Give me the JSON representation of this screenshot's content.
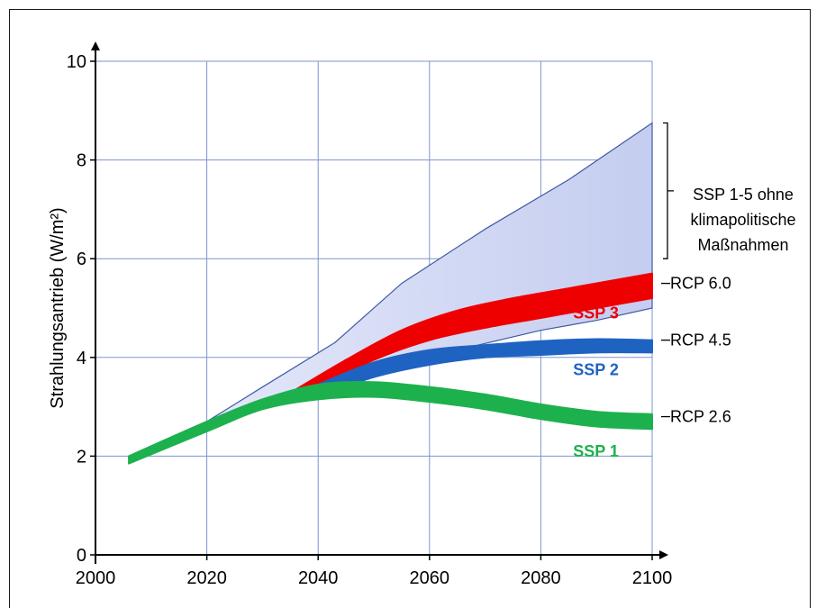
{
  "chart_data": {
    "type": "area",
    "xlim": [
      2000,
      2100
    ],
    "ylim": [
      0,
      10
    ],
    "x_ticks": [
      "2000",
      "2020",
      "2040",
      "2060",
      "2080",
      "2100"
    ],
    "y_ticks": [
      "0",
      "2",
      "4",
      "6",
      "8",
      "10"
    ],
    "ylabel": "Strahlungsantrieb (W/m²)",
    "grid": true,
    "envelope": {
      "color": "#c5cdf0",
      "upper": [
        [
          2006,
          1.95
        ],
        [
          2020,
          2.7
        ],
        [
          2030,
          3.4
        ],
        [
          2043,
          4.3
        ],
        [
          2055,
          5.5
        ],
        [
          2070,
          6.6
        ],
        [
          2085,
          7.6
        ],
        [
          2100,
          8.75
        ]
      ],
      "lower": [
        [
          2100,
          5.0
        ],
        [
          2090,
          4.75
        ],
        [
          2080,
          4.55
        ],
        [
          2065,
          4.15
        ],
        [
          2050,
          3.7
        ],
        [
          2040,
          3.3
        ],
        [
          2030,
          2.95
        ],
        [
          2020,
          2.55
        ],
        [
          2006,
          1.95
        ]
      ]
    },
    "series": [
      {
        "name": "SSP 3",
        "color": "#ee0000",
        "upper": [
          [
            2036,
            3.35
          ],
          [
            2045,
            3.95
          ],
          [
            2055,
            4.55
          ],
          [
            2065,
            4.95
          ],
          [
            2075,
            5.2
          ],
          [
            2085,
            5.4
          ],
          [
            2100,
            5.7
          ]
        ],
        "lower": [
          [
            2100,
            5.2
          ],
          [
            2090,
            5.0
          ],
          [
            2080,
            4.8
          ],
          [
            2070,
            4.6
          ],
          [
            2060,
            4.35
          ],
          [
            2050,
            3.95
          ],
          [
            2040,
            3.4
          ],
          [
            2036,
            3.3
          ]
        ]
      },
      {
        "name": "SSP 2",
        "color": "#1f63c2",
        "upper": [
          [
            2040,
            3.45
          ],
          [
            2050,
            3.9
          ],
          [
            2060,
            4.15
          ],
          [
            2070,
            4.25
          ],
          [
            2080,
            4.33
          ],
          [
            2090,
            4.37
          ],
          [
            2100,
            4.35
          ]
        ],
        "lower": [
          [
            2100,
            4.1
          ],
          [
            2090,
            4.1
          ],
          [
            2080,
            4.05
          ],
          [
            2070,
            4.0
          ],
          [
            2060,
            3.85
          ],
          [
            2050,
            3.6
          ],
          [
            2040,
            3.2
          ]
        ]
      },
      {
        "name": "SSP 1",
        "color": "#1db14e",
        "upper": [
          [
            2006,
            2.0
          ],
          [
            2020,
            2.7
          ],
          [
            2030,
            3.15
          ],
          [
            2040,
            3.45
          ],
          [
            2050,
            3.5
          ],
          [
            2060,
            3.4
          ],
          [
            2070,
            3.25
          ],
          [
            2080,
            3.05
          ],
          [
            2090,
            2.9
          ],
          [
            2100,
            2.85
          ]
        ],
        "lower": [
          [
            2100,
            2.55
          ],
          [
            2090,
            2.6
          ],
          [
            2080,
            2.75
          ],
          [
            2070,
            2.95
          ],
          [
            2060,
            3.1
          ],
          [
            2050,
            3.2
          ],
          [
            2040,
            3.15
          ],
          [
            2030,
            2.95
          ],
          [
            2020,
            2.5
          ],
          [
            2006,
            1.85
          ]
        ]
      }
    ],
    "annotations": {
      "ssp_bracket_lines": [
        "SSP 1-5 ohne",
        "klimapolitische",
        "Maßnahmen"
      ],
      "rcp": [
        {
          "label": "RCP 6.0",
          "y": 5.5
        },
        {
          "label": "RCP 4.5",
          "y": 4.35
        },
        {
          "label": "RCP 2.6",
          "y": 2.8
        }
      ],
      "ssp_labels": [
        {
          "label": "SSP 3",
          "color": "#ee0000",
          "x": 2094,
          "y": 4.9
        },
        {
          "label": "SSP 2",
          "color": "#1f63c2",
          "x": 2094,
          "y": 3.75
        },
        {
          "label": "SSP 1",
          "color": "#1db14e",
          "x": 2094,
          "y": 2.1
        }
      ],
      "bracket_range": [
        6.0,
        8.75
      ]
    }
  }
}
